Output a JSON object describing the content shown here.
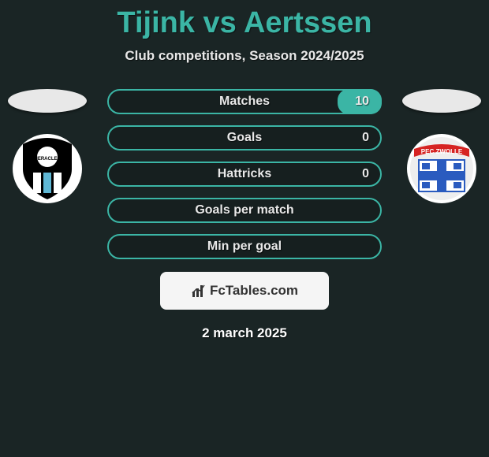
{
  "title": "Tijink vs Aertssen",
  "subtitle": "Club competitions, Season 2024/2025",
  "date": "2 march 2025",
  "watermark_brand": "FcTables.com",
  "colors": {
    "accent": "#3bb5a5",
    "background": "#1a2525",
    "text": "#e8e8e8",
    "watermark_bg": "#f5f5f5"
  },
  "left_team": {
    "name": "Heracles",
    "crest_shape": "shield",
    "crest_colors": {
      "outer": "#ffffff",
      "inner": "#000000",
      "stripe": "#5fb7d4"
    }
  },
  "right_team": {
    "name": "PEC Zwolle",
    "crest_shape": "round",
    "crest_colors": {
      "outer": "#ffffff",
      "banner": "#d62423",
      "cross": "#2a5bbf",
      "field": "#ffffff"
    }
  },
  "stats": [
    {
      "label": "Matches",
      "left_val": "",
      "right_val": "10",
      "left_pct": 0,
      "right_pct": 16
    },
    {
      "label": "Goals",
      "left_val": "",
      "right_val": "0",
      "left_pct": 0,
      "right_pct": 0
    },
    {
      "label": "Hattricks",
      "left_val": "",
      "right_val": "0",
      "left_pct": 0,
      "right_pct": 0
    },
    {
      "label": "Goals per match",
      "left_val": "",
      "right_val": "",
      "left_pct": 0,
      "right_pct": 0
    },
    {
      "label": "Min per goal",
      "left_val": "",
      "right_val": "",
      "left_pct": 0,
      "right_pct": 0
    }
  ]
}
